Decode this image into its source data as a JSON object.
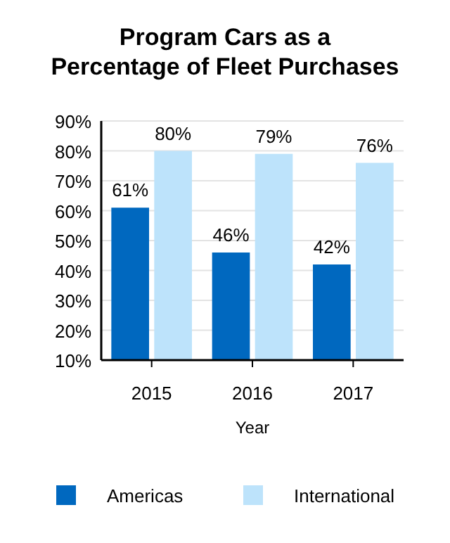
{
  "chart_data": {
    "type": "bar",
    "title": "Program Cars as a Percentage of Fleet Purchases",
    "xlabel": "Year",
    "categories": [
      "2015",
      "2016",
      "2017"
    ],
    "series": [
      {
        "name": "Americas",
        "color": "#0068bf",
        "values": [
          61,
          46,
          42
        ],
        "value_labels": [
          "61%",
          "46%",
          "42%"
        ]
      },
      {
        "name": "International",
        "color": "#bde3fb",
        "values": [
          80,
          79,
          76
        ],
        "value_labels": [
          "80%",
          "79%",
          "76%"
        ]
      }
    ],
    "ylim": [
      10,
      90
    ],
    "yticks": [
      {
        "value": 10,
        "label": "10%"
      },
      {
        "value": 20,
        "label": "20%"
      },
      {
        "value": 30,
        "label": "30%"
      },
      {
        "value": 40,
        "label": "40%"
      },
      {
        "value": 50,
        "label": "50%"
      },
      {
        "value": 60,
        "label": "60%"
      },
      {
        "value": 70,
        "label": "70%"
      },
      {
        "value": 80,
        "label": "80%"
      },
      {
        "value": 90,
        "label": "90%"
      }
    ],
    "grid": "y",
    "legend": "bottom"
  }
}
